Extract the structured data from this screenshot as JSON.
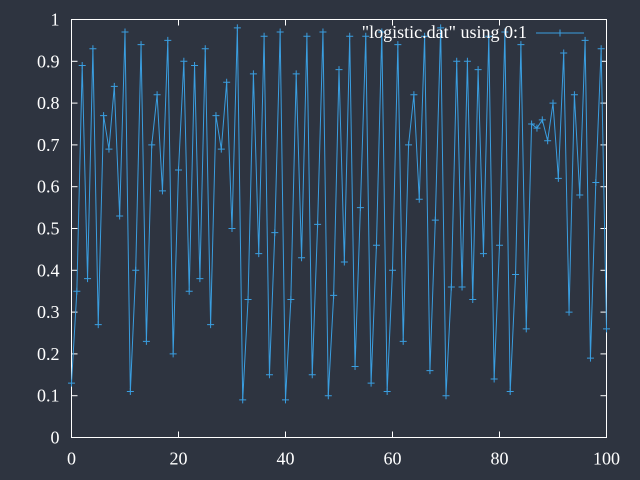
{
  "chart_data": {
    "type": "line",
    "title": "",
    "xlabel": "",
    "ylabel": "",
    "xlim": [
      0,
      100
    ],
    "ylim": [
      0,
      1
    ],
    "grid": false,
    "legend": "top-right",
    "background": "#2e3440",
    "axis_color": "#ffffff",
    "xticks": [
      0,
      20,
      40,
      60,
      80,
      100
    ],
    "yticks": [
      0,
      0.1,
      0.2,
      0.3,
      0.4,
      0.5,
      0.6,
      0.7,
      0.8,
      0.9,
      1
    ],
    "marker": "plus",
    "series": [
      {
        "name": "\"logistic.dat\" using 0:1",
        "color": "#3a9ee0",
        "x": [
          0,
          1,
          2,
          3,
          4,
          5,
          6,
          7,
          8,
          9,
          10,
          11,
          12,
          13,
          14,
          15,
          16,
          17,
          18,
          19,
          20,
          21,
          22,
          23,
          24,
          25,
          26,
          27,
          28,
          29,
          30,
          31,
          32,
          33,
          34,
          35,
          36,
          37,
          38,
          39,
          40,
          41,
          42,
          43,
          44,
          45,
          46,
          47,
          48,
          49,
          50,
          51,
          52,
          53,
          54,
          55,
          56,
          57,
          58,
          59,
          60,
          61,
          62,
          63,
          64,
          65,
          66,
          67,
          68,
          69,
          70,
          71,
          72,
          73,
          74,
          75,
          76,
          77,
          78,
          79,
          80,
          81,
          82,
          83,
          84,
          85,
          86,
          87,
          88,
          89,
          90,
          91,
          92,
          93,
          94,
          95,
          96,
          97,
          98,
          99,
          100
        ],
        "values": [
          0.13,
          0.35,
          0.89,
          0.38,
          0.93,
          0.27,
          0.77,
          0.69,
          0.84,
          0.53,
          0.97,
          0.11,
          0.4,
          0.94,
          0.23,
          0.7,
          0.82,
          0.59,
          0.95,
          0.2,
          0.64,
          0.9,
          0.35,
          0.89,
          0.38,
          0.93,
          0.27,
          0.77,
          0.69,
          0.85,
          0.5,
          0.98,
          0.09,
          0.33,
          0.87,
          0.44,
          0.96,
          0.15,
          0.49,
          0.97,
          0.09,
          0.33,
          0.87,
          0.43,
          0.96,
          0.15,
          0.51,
          0.97,
          0.1,
          0.34,
          0.88,
          0.42,
          0.96,
          0.17,
          0.55,
          0.96,
          0.13,
          0.46,
          0.97,
          0.11,
          0.4,
          0.94,
          0.23,
          0.7,
          0.82,
          0.57,
          0.96,
          0.16,
          0.52,
          0.98,
          0.1,
          0.36,
          0.9,
          0.36,
          0.9,
          0.33,
          0.88,
          0.44,
          0.96,
          0.14,
          0.46,
          0.97,
          0.11,
          0.39,
          0.94,
          0.26,
          0.75,
          0.74,
          0.76,
          0.71,
          0.8,
          0.62,
          0.92,
          0.3,
          0.82,
          0.58,
          0.95,
          0.19,
          0.61,
          0.93,
          0.26
        ]
      }
    ]
  }
}
